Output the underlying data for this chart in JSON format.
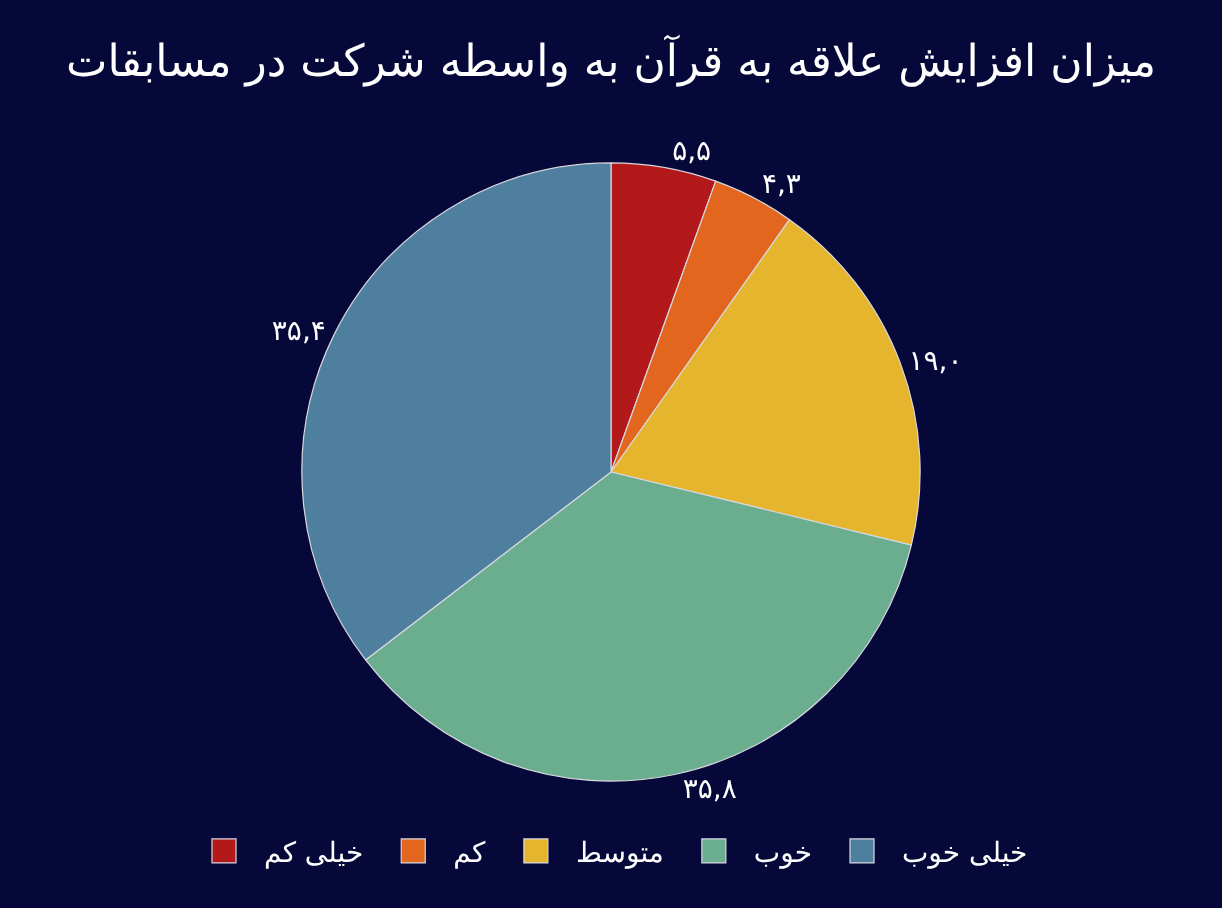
{
  "chart_data": {
    "type": "pie",
    "title": "میزان افزایش علاقه به قرآن به واسطه شرکت در مسابقات",
    "categories": [
      "خیلی کم",
      "کم",
      "متوسط",
      "خوب",
      "خیلی خوب"
    ],
    "values": [
      5.5,
      4.3,
      19.0,
      35.8,
      35.4
    ],
    "value_labels": [
      "۵,۵",
      "۴,۳",
      "۱۹,۰",
      "۳۵,۸",
      "۳۵,۴"
    ],
    "colors": [
      "#b3191b",
      "#e2661d",
      "#e6b52e",
      "#6aae8f",
      "#4f7f9e"
    ],
    "legend": "bottom"
  }
}
